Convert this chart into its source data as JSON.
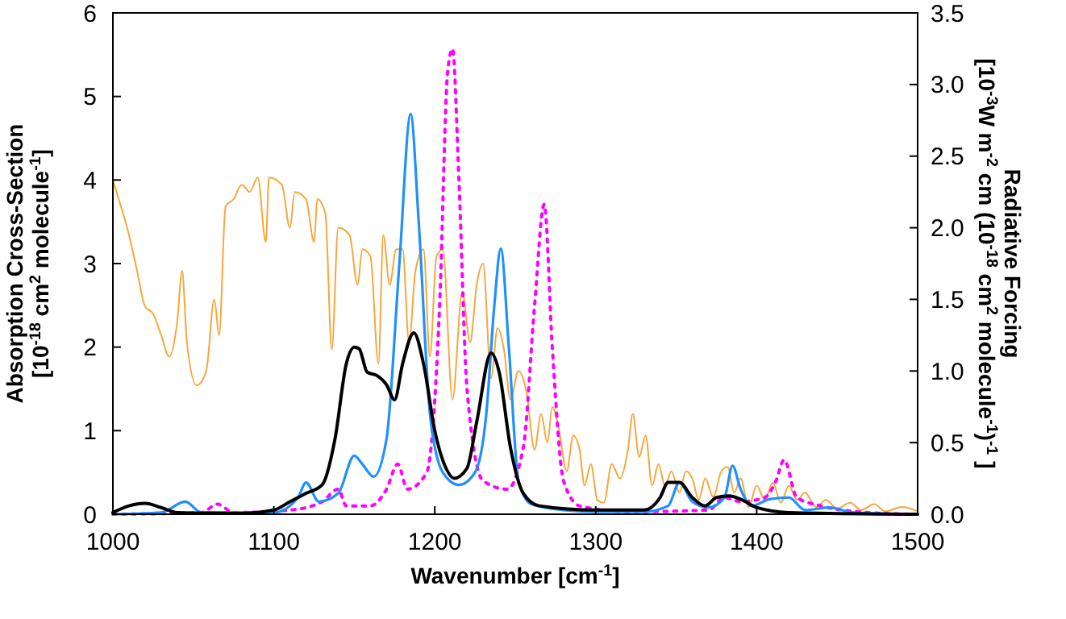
{
  "chart_data": {
    "type": "line",
    "xlabel": "Wavenumber [cm$^{-1}$]",
    "ylabel": "Absorption Cross-Section\n[10$^{-18}$ cm$^{2}$ molecule$^{-1}$]",
    "y2label": "Radiative Forcing\n[10$^{-3}$W m$^{-2}$ cm (10$^{-18}$ cm$^{2}$ molecule$^{-1}$)$^{-1}$ ]",
    "xlim": [
      1000,
      1500
    ],
    "xticks": [
      1000,
      1100,
      1200,
      1300,
      1400,
      1500
    ],
    "ylim": [
      0,
      6
    ],
    "yticks": [
      0,
      1,
      2,
      3,
      4,
      5,
      6
    ],
    "y2lim": [
      0,
      3.5
    ],
    "y2ticks": [
      {
        "value": 0,
        "label": "0.0"
      },
      0.5,
      {
        "value": 1,
        "label": "1.0"
      },
      1.5,
      {
        "value": 2,
        "label": "2.0"
      },
      2.5,
      {
        "value": 3,
        "label": "3.0"
      },
      3.5
    ],
    "grid": false,
    "series": [
      {
        "color": "#f7a73c",
        "axis": "y2",
        "line_style": "solid",
        "x": [
          1000,
          1005,
          1010,
          1015,
          1020,
          1025,
          1030,
          1035,
          1040,
          1043,
          1046,
          1052,
          1058,
          1063,
          1066,
          1070,
          1075,
          1080,
          1085,
          1090,
          1095,
          1097,
          1105,
          1110,
          1113,
          1120,
          1125,
          1127,
          1132,
          1136,
          1140,
          1147,
          1152,
          1155,
          1160,
          1165,
          1168,
          1172,
          1176,
          1180,
          1184,
          1188,
          1193,
          1197,
          1201,
          1205,
          1211,
          1217,
          1222,
          1226,
          1230,
          1235,
          1239,
          1243,
          1247,
          1252,
          1257,
          1262,
          1266,
          1270,
          1273,
          1277,
          1282,
          1286,
          1290,
          1293,
          1297,
          1301,
          1305,
          1310,
          1315,
          1320,
          1323,
          1327,
          1331,
          1335,
          1339,
          1343,
          1347,
          1352,
          1356,
          1360,
          1364,
          1368,
          1373,
          1378,
          1382,
          1386,
          1390,
          1395,
          1400,
          1405,
          1410,
          1415,
          1420,
          1425,
          1430,
          1437,
          1443,
          1450,
          1458,
          1465,
          1473,
          1480,
          1490,
          1500
        ],
        "values": [
          2.33,
          2.15,
          1.95,
          1.7,
          1.45,
          1.4,
          1.25,
          1.1,
          1.35,
          1.7,
          1.2,
          0.9,
          1.0,
          1.5,
          1.25,
          2.15,
          2.2,
          2.3,
          2.25,
          2.35,
          1.9,
          2.35,
          2.3,
          2.0,
          2.25,
          2.2,
          1.9,
          2.2,
          2.1,
          1.15,
          2.0,
          1.95,
          1.6,
          1.85,
          1.8,
          1.05,
          1.95,
          1.6,
          1.85,
          1.85,
          1.2,
          1.7,
          1.85,
          1.1,
          1.8,
          1.85,
          0.8,
          1.55,
          1.2,
          1.6,
          1.75,
          0.95,
          1.3,
          1.15,
          0.8,
          1.0,
          0.85,
          0.45,
          0.7,
          0.5,
          0.75,
          0.6,
          0.3,
          0.55,
          0.45,
          0.2,
          0.35,
          0.1,
          0.08,
          0.35,
          0.25,
          0.45,
          0.7,
          0.4,
          0.55,
          0.2,
          0.35,
          0.2,
          0.3,
          0.15,
          0.3,
          0.25,
          0.1,
          0.25,
          0.12,
          0.3,
          0.33,
          0.15,
          0.25,
          0.05,
          0.2,
          0.1,
          0.22,
          0.08,
          0.2,
          0.1,
          0.15,
          0.05,
          0.1,
          0.04,
          0.08,
          0.03,
          0.07,
          0.02,
          0.05,
          0.02
        ]
      },
      {
        "color": "#ff00ff",
        "line_style": "dotted",
        "x": [
          1000,
          1055,
          1065,
          1075,
          1110,
          1130,
          1140,
          1145,
          1160,
          1170,
          1177,
          1183,
          1195,
          1203,
          1208,
          1211,
          1215,
          1220,
          1230,
          1245,
          1255,
          1262,
          1268,
          1273,
          1280,
          1290,
          1320,
          1370,
          1380,
          1390,
          1405,
          1412,
          1417,
          1425,
          1440,
          1470,
          1500
        ],
        "values": [
          0,
          0.02,
          0.12,
          0.02,
          0.05,
          0.15,
          0.3,
          0.1,
          0.1,
          0.3,
          0.6,
          0.3,
          0.5,
          2.5,
          5.3,
          5.57,
          4.0,
          1.5,
          0.4,
          0.3,
          0.8,
          2.5,
          3.71,
          2.0,
          0.4,
          0.1,
          0.03,
          0.05,
          0.2,
          0.15,
          0.2,
          0.4,
          0.65,
          0.2,
          0.1,
          0.02,
          0
        ]
      },
      {
        "color": "#1e90ff",
        "line_style": "solid",
        "x": [
          1000,
          1030,
          1045,
          1055,
          1100,
          1115,
          1120,
          1128,
          1140,
          1150,
          1155,
          1162,
          1170,
          1178,
          1185,
          1190,
          1197,
          1205,
          1215,
          1225,
          1232,
          1237,
          1241,
          1246,
          1252,
          1260,
          1280,
          1300,
          1330,
          1345,
          1352,
          1360,
          1370,
          1380,
          1385,
          1390,
          1397,
          1408,
          1420,
          1430,
          1445,
          1460,
          1500
        ],
        "values": [
          0,
          0.02,
          0.15,
          0.02,
          0.02,
          0.2,
          0.38,
          0.15,
          0.25,
          0.7,
          0.6,
          0.45,
          0.9,
          3.0,
          4.79,
          3.5,
          1.2,
          0.5,
          0.35,
          0.5,
          1.2,
          2.5,
          3.18,
          2.0,
          0.4,
          0.12,
          0.05,
          0.03,
          0.03,
          0.1,
          0.38,
          0.15,
          0.08,
          0.2,
          0.58,
          0.3,
          0.1,
          0.18,
          0.2,
          0.05,
          0.08,
          0.02,
          0
        ]
      },
      {
        "color": "#000000",
        "line_style": "solid",
        "x": [
          1000,
          1010,
          1020,
          1030,
          1040,
          1080,
          1100,
          1110,
          1120,
          1130,
          1138,
          1145,
          1150,
          1153,
          1158,
          1164,
          1170,
          1175,
          1180,
          1187,
          1193,
          1200,
          1207,
          1212,
          1220,
          1226,
          1235,
          1240,
          1247,
          1255,
          1265,
          1300,
          1330,
          1340,
          1345,
          1352,
          1360,
          1368,
          1375,
          1383,
          1390,
          1400,
          1420,
          1500
        ],
        "values": [
          0.02,
          0.1,
          0.13,
          0.08,
          0.02,
          0.01,
          0.05,
          0.15,
          0.25,
          0.35,
          0.9,
          1.8,
          2.0,
          1.98,
          1.7,
          1.66,
          1.55,
          1.37,
          1.8,
          2.17,
          1.8,
          1.0,
          0.55,
          0.43,
          0.55,
          1.1,
          1.93,
          1.7,
          0.8,
          0.25,
          0.1,
          0.05,
          0.05,
          0.2,
          0.38,
          0.38,
          0.2,
          0.1,
          0.2,
          0.22,
          0.18,
          0.08,
          0.02,
          0
        ]
      }
    ]
  }
}
